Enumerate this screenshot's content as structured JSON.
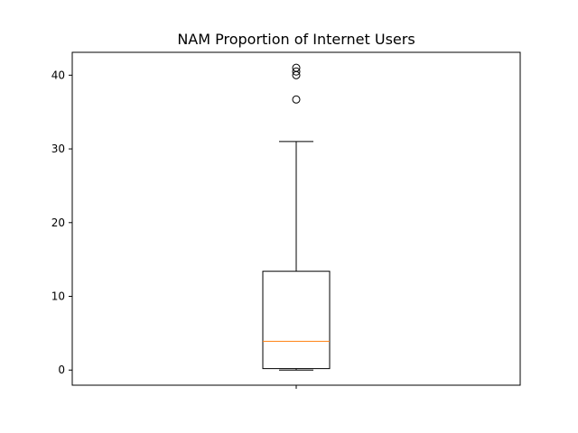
{
  "chart_data": {
    "type": "boxplot",
    "title": "NAM Proportion of Internet Users",
    "xlabel": "",
    "ylabel": "",
    "ylim": [
      -2.05,
      43.1
    ],
    "yticks": [
      0,
      10,
      20,
      30,
      40
    ],
    "x_category_label": "",
    "box": {
      "whisker_low": 0.0,
      "q1": 0.2,
      "median": 3.9,
      "q3": 13.4,
      "whisker_high": 31.0,
      "outliers": [
        36.7,
        40.0,
        40.5,
        41.0
      ]
    },
    "grid": false,
    "legend": false
  },
  "colors": {
    "box": "#000000",
    "median": "#ff7f0e",
    "outlier_edge": "#000000",
    "axes": "#000000",
    "background": "#ffffff"
  }
}
